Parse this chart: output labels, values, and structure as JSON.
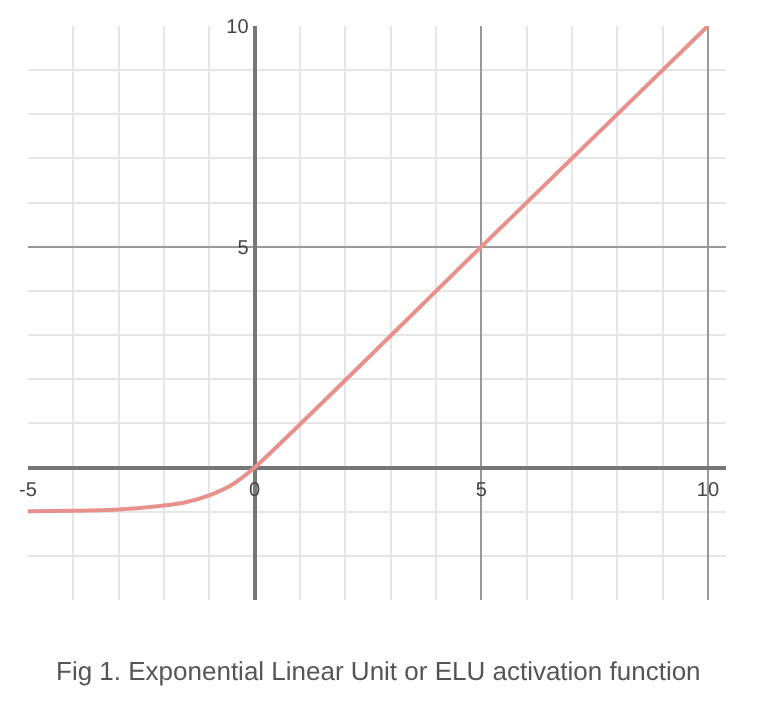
{
  "chart_data": {
    "type": "line",
    "x": [
      -5,
      -4,
      -3,
      -2,
      -1.5,
      -1,
      -0.5,
      0,
      5,
      10
    ],
    "series": [
      {
        "color": "#e8918c",
        "values": [
          -0.99,
          -0.98,
          -0.95,
          -0.86,
          -0.78,
          -0.63,
          -0.39,
          0,
          5,
          10
        ]
      }
    ],
    "xlim": [
      -5,
      10.4
    ],
    "ylim": [
      -3,
      10
    ],
    "xticks": [
      {
        "value": -5,
        "label": "-5"
      },
      0,
      5,
      10
    ],
    "yticks": [
      5,
      10
    ],
    "grid": true,
    "annotations": [
      "Fig 1. Exponential Linear Unit or ELU activation function"
    ]
  }
}
